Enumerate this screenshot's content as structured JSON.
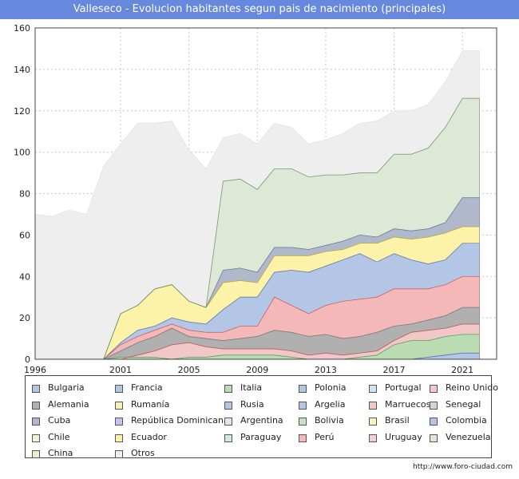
{
  "title": "Valleseco - Evolucion habitantes segun pais de nacimiento (principales)",
  "footer": "http://www.foro-ciudad.com",
  "chart_data": {
    "type": "area",
    "stacked": true,
    "title": "Valleseco - Evolucion habitantes segun pais de nacimiento (principales)",
    "xlabel": "",
    "ylabel": "",
    "xlim": [
      1996,
      2023
    ],
    "ylim": [
      0,
      160
    ],
    "x_ticks": [
      1996,
      2001,
      2005,
      2009,
      2013,
      2017,
      2021
    ],
    "y_ticks": [
      0,
      20,
      40,
      60,
      80,
      100,
      120,
      140,
      160
    ],
    "grid": true,
    "legend_position": "bottom",
    "x": [
      1996,
      1997,
      1998,
      1999,
      2000,
      2001,
      2002,
      2003,
      2004,
      2005,
      2006,
      2007,
      2008,
      2009,
      2010,
      2011,
      2012,
      2013,
      2014,
      2015,
      2016,
      2017,
      2018,
      2019,
      2020,
      2021,
      2022
    ],
    "total": [
      70,
      69,
      72,
      70,
      93,
      104,
      114,
      114,
      115,
      101,
      92,
      107,
      109,
      104,
      114,
      112,
      104,
      106,
      109,
      114,
      115,
      120,
      120,
      123,
      134,
      149,
      149
    ],
    "series": [
      {
        "name": "Bulgaria",
        "color": "#b3c6e6",
        "values": [
          0,
          0,
          0,
          0,
          0,
          0,
          0,
          0,
          0,
          0,
          0,
          0,
          0,
          0,
          0,
          0,
          0,
          0,
          0,
          0,
          0,
          0,
          0,
          0,
          0,
          0,
          0
        ]
      },
      {
        "name": "Francia",
        "color": "#b3c6e6",
        "values": [
          0,
          0,
          0,
          0,
          0,
          0,
          0,
          0,
          0,
          0,
          0,
          0,
          0,
          0,
          0,
          0,
          0,
          0,
          0,
          0,
          0,
          0,
          0,
          0,
          0,
          0,
          0
        ]
      },
      {
        "name": "Italia",
        "color": "#b9dcb3",
        "values": [
          0,
          0,
          0,
          0,
          0,
          0,
          0,
          0,
          0,
          0,
          0,
          0,
          0,
          0,
          0,
          0,
          0,
          0,
          0,
          0,
          0,
          0,
          0,
          0,
          0,
          0,
          0
        ]
      },
      {
        "name": "Polonia",
        "color": "#b3c6e6",
        "values": [
          0,
          0,
          0,
          0,
          0,
          0,
          0,
          0,
          0,
          0,
          0,
          0,
          0,
          0,
          0,
          0,
          0,
          0,
          0,
          0,
          0,
          0,
          0,
          0,
          0,
          0,
          0
        ]
      },
      {
        "name": "Portugal",
        "color": "#cfe6f2",
        "values": [
          0,
          0,
          0,
          0,
          0,
          0,
          0,
          0,
          0,
          0,
          0,
          0,
          0,
          0,
          0,
          0,
          0,
          0,
          0,
          0,
          0,
          0,
          0,
          0,
          0,
          0,
          0
        ]
      },
      {
        "name": "Reino Unido",
        "color": "#f2c7c7",
        "values": [
          0,
          0,
          0,
          0,
          0,
          0,
          0,
          0,
          0,
          0,
          0,
          0,
          0,
          0,
          0,
          0,
          0,
          0,
          0,
          0,
          0,
          0,
          0,
          0,
          0,
          0,
          0
        ]
      },
      {
        "name": "Alemania",
        "color": "#b0b0b0",
        "values": [
          0,
          0,
          0,
          0,
          0,
          0,
          0,
          0,
          0,
          0,
          0,
          0,
          0,
          0,
          0,
          0,
          0,
          0,
          0,
          0,
          0,
          0,
          0,
          0,
          0,
          0,
          0
        ]
      },
      {
        "name": "Rumanía",
        "color": "#f8f0b0",
        "values": [
          0,
          0,
          0,
          0,
          0,
          0,
          0,
          0,
          0,
          0,
          0,
          0,
          0,
          0,
          0,
          0,
          0,
          0,
          0,
          0,
          0,
          0,
          0,
          0,
          0,
          0,
          0
        ]
      },
      {
        "name": "Rusia",
        "color": "#b3c6e6",
        "values": [
          0,
          0,
          0,
          0,
          0,
          0,
          0,
          0,
          0,
          0,
          0,
          0,
          0,
          0,
          0,
          0,
          0,
          0,
          0,
          0,
          0,
          0,
          0,
          0,
          0,
          0,
          0
        ]
      },
      {
        "name": "Argelia",
        "color": "#b3c6e6",
        "values": [
          0,
          0,
          0,
          0,
          0,
          0,
          0,
          0,
          0,
          0,
          0,
          0,
          0,
          0,
          0,
          0,
          0,
          0,
          0,
          0,
          0,
          0,
          0,
          0,
          0,
          0,
          0
        ]
      },
      {
        "name": "Marruecos",
        "color": "#f2c7c7",
        "values": [
          0,
          0,
          0,
          0,
          0,
          0,
          0,
          0,
          0,
          0,
          0,
          0,
          0,
          0,
          0,
          0,
          0,
          0,
          0,
          0,
          0,
          0,
          0,
          0,
          0,
          0,
          0
        ]
      },
      {
        "name": "Senegal",
        "color": "#d4d4d4",
        "values": [
          0,
          0,
          0,
          0,
          0,
          0,
          0,
          0,
          0,
          0,
          0,
          0,
          0,
          0,
          0,
          0,
          0,
          0,
          0,
          0,
          0,
          0,
          0,
          0,
          0,
          0,
          0
        ]
      },
      {
        "name": "Cuba",
        "color": "#b0b8cc",
        "values": [
          0,
          0,
          0,
          0,
          0,
          0,
          0,
          0,
          0,
          0,
          0,
          0,
          0,
          0,
          0,
          0,
          0,
          0,
          0,
          0,
          0,
          0,
          0,
          0,
          0,
          0,
          0
        ]
      },
      {
        "name": "República Dominicana",
        "color": "#c8c0ee",
        "values": [
          0,
          0,
          0,
          0,
          0,
          0,
          0,
          0,
          0,
          0,
          0,
          0,
          0,
          0,
          0,
          0,
          0,
          0,
          0,
          0,
          0,
          0,
          0,
          0,
          0,
          0,
          0
        ]
      },
      {
        "name": "Argentina",
        "color": "#dde8f6",
        "values": [
          0,
          0,
          0,
          0,
          0,
          0,
          0,
          0,
          0,
          0,
          0,
          0,
          0,
          0,
          0,
          0,
          0,
          0,
          0,
          0,
          0,
          0,
          0,
          0,
          0,
          0,
          0
        ]
      },
      {
        "name": "Bolivia",
        "color": "#c4e2c4",
        "values": [
          0,
          0,
          0,
          0,
          0,
          0,
          0,
          0,
          0,
          0,
          0,
          0,
          0,
          0,
          0,
          0,
          0,
          0,
          0,
          0,
          0,
          0,
          0,
          0,
          0,
          0,
          0
        ]
      },
      {
        "name": "Brasil",
        "color": "#faf0c0",
        "values": [
          0,
          0,
          0,
          0,
          0,
          0,
          0,
          0,
          0,
          0,
          0,
          0,
          0,
          0,
          0,
          0,
          0,
          0,
          0,
          0,
          0,
          0,
          0,
          0,
          0,
          0,
          0
        ]
      },
      {
        "name": "Colombia",
        "color": "#b3c6e6",
        "values": [
          0,
          0,
          0,
          0,
          0,
          0,
          0,
          0,
          0,
          0,
          0,
          0,
          0,
          0,
          0,
          0,
          0,
          0,
          0,
          0,
          0,
          0,
          0,
          0,
          0,
          0,
          0
        ]
      },
      {
        "name": "Chile",
        "color": "#f2f2d8",
        "values": [
          0,
          0,
          0,
          0,
          0,
          0,
          0,
          0,
          0,
          0,
          0,
          0,
          0,
          0,
          0,
          0,
          0,
          0,
          0,
          0,
          0,
          0,
          0,
          0,
          0,
          0,
          0
        ]
      },
      {
        "name": "Ecuador",
        "color": "#fdf3a8",
        "values": [
          0,
          0,
          0,
          0,
          0,
          0,
          0,
          0,
          0,
          0,
          0,
          0,
          0,
          0,
          0,
          0,
          0,
          0,
          0,
          0,
          0,
          0,
          0,
          0,
          0,
          0,
          0
        ]
      },
      {
        "name": "Paraguay",
        "color": "#cfe8e8",
        "values": [
          0,
          0,
          0,
          0,
          0,
          0,
          0,
          0,
          0,
          0,
          0,
          0,
          0,
          0,
          0,
          0,
          0,
          0,
          0,
          0,
          0,
          0,
          0,
          0,
          0,
          0,
          0
        ]
      },
      {
        "name": "Perú",
        "color": "#f4b8b8",
        "values": [
          0,
          0,
          0,
          0,
          0,
          0,
          0,
          0,
          0,
          0,
          0,
          0,
          0,
          0,
          0,
          0,
          0,
          0,
          0,
          0,
          0,
          0,
          0,
          0,
          0,
          0,
          0
        ]
      },
      {
        "name": "Uruguay",
        "color": "#f0d0e0",
        "values": [
          0,
          0,
          0,
          0,
          0,
          0,
          0,
          0,
          0,
          0,
          0,
          0,
          0,
          0,
          0,
          0,
          0,
          0,
          0,
          0,
          0,
          0,
          0,
          0,
          0,
          0,
          0
        ]
      },
      {
        "name": "Venezuela",
        "color": "#dde8d6",
        "values": [
          0,
          0,
          0,
          0,
          0,
          0,
          0,
          0,
          0,
          0,
          0,
          0,
          0,
          0,
          0,
          0,
          0,
          0,
          0,
          0,
          0,
          0,
          0,
          0,
          0,
          0,
          0
        ]
      },
      {
        "name": "China",
        "color": "#e8f0d0",
        "values": [
          0,
          0,
          0,
          0,
          0,
          0,
          0,
          0,
          0,
          0,
          0,
          0,
          0,
          0,
          0,
          0,
          0,
          0,
          0,
          0,
          0,
          0,
          0,
          0,
          0,
          0,
          0
        ]
      },
      {
        "name": "Otros",
        "color": "#eeeeee",
        "values": [
          0,
          0,
          0,
          0,
          0,
          0,
          0,
          0,
          0,
          0,
          0,
          0,
          0,
          0,
          0,
          0,
          0,
          0,
          0,
          0,
          0,
          0,
          0,
          0,
          0,
          0,
          0
        ]
      }
    ],
    "cumulative_layers": [
      {
        "name": "Bulgaria",
        "color": "#b3c6e6",
        "top": [
          0,
          0,
          0,
          0,
          0,
          0,
          0,
          0,
          0,
          0,
          0,
          0,
          0,
          0,
          0,
          0,
          0,
          0,
          0,
          0,
          0,
          0,
          0,
          1,
          2,
          3,
          3
        ]
      },
      {
        "name": "Italia",
        "color": "#b9dcb3",
        "top": [
          0,
          0,
          0,
          0,
          0,
          1,
          1,
          1,
          0,
          1,
          1,
          2,
          2,
          2,
          2,
          1,
          0,
          0,
          0,
          1,
          2,
          7,
          9,
          9,
          11,
          12,
          12
        ]
      },
      {
        "name": "Marruecos",
        "color": "#f2c7c7",
        "top": [
          0,
          0,
          0,
          0,
          0,
          0,
          2,
          4,
          7,
          8,
          6,
          5,
          5,
          5,
          5,
          4,
          2,
          3,
          2,
          3,
          4,
          9,
          13,
          14,
          15,
          17,
          17
        ]
      },
      {
        "name": "Alemania",
        "color": "#b0b0b0",
        "top": [
          0,
          0,
          0,
          0,
          0,
          4,
          8,
          11,
          15,
          11,
          10,
          9,
          10,
          11,
          14,
          13,
          11,
          12,
          10,
          11,
          13,
          16,
          17,
          19,
          21,
          25,
          25
        ]
      },
      {
        "name": "Perú",
        "color": "#f4b8b8",
        "top": [
          0,
          0,
          0,
          0,
          0,
          7,
          11,
          14,
          17,
          14,
          13,
          13,
          16,
          16,
          30,
          26,
          22,
          26,
          28,
          29,
          30,
          34,
          34,
          34,
          36,
          40,
          40
        ]
      },
      {
        "name": "Colombia",
        "color": "#b3c6e6",
        "top": [
          0,
          0,
          0,
          0,
          0,
          8,
          14,
          16,
          20,
          18,
          17,
          24,
          30,
          30,
          42,
          43,
          42,
          45,
          48,
          51,
          47,
          51,
          48,
          46,
          48,
          56,
          56
        ]
      },
      {
        "name": "Ecuador",
        "color": "#fdf3a8",
        "top": [
          0,
          0,
          0,
          0,
          0,
          22,
          26,
          34,
          36,
          28,
          25,
          37,
          38,
          37,
          50,
          50,
          50,
          52,
          53,
          56,
          56,
          59,
          58,
          59,
          61,
          64,
          64
        ]
      },
      {
        "name": "Cuba",
        "color": "#b0b8cc",
        "top": [
          0,
          0,
          0,
          0,
          0,
          22,
          26,
          34,
          36,
          28,
          25,
          43,
          44,
          42,
          54,
          54,
          53,
          55,
          57,
          60,
          59,
          63,
          62,
          63,
          66,
          78,
          78
        ]
      },
      {
        "name": "Venezuela",
        "color": "#dde8d6",
        "top": [
          0,
          0,
          0,
          0,
          0,
          22,
          26,
          34,
          36,
          28,
          25,
          86,
          87,
          82,
          92,
          92,
          88,
          89,
          89,
          90,
          90,
          99,
          99,
          102,
          112,
          126,
          126
        ]
      },
      {
        "name": "Otros",
        "color": "#eeeeee",
        "top": [
          70,
          69,
          72,
          70,
          93,
          104,
          114,
          114,
          115,
          101,
          92,
          107,
          109,
          104,
          114,
          112,
          104,
          106,
          109,
          114,
          115,
          120,
          120,
          123,
          134,
          149,
          149
        ]
      }
    ]
  },
  "legend": [
    {
      "label": "Bulgaria",
      "color": "#b3c6e6"
    },
    {
      "label": "Francia",
      "color": "#b3c6e6"
    },
    {
      "label": "Italia",
      "color": "#b9dcb3"
    },
    {
      "label": "Polonia",
      "color": "#b3c6e6"
    },
    {
      "label": "Portugal",
      "color": "#cfe6f2"
    },
    {
      "label": "Reino Unido",
      "color": "#f2c7c7"
    },
    {
      "label": "Alemania",
      "color": "#b0b0b0"
    },
    {
      "label": "Rumanía",
      "color": "#f8f0b0"
    },
    {
      "label": "Rusia",
      "color": "#b3c6e6"
    },
    {
      "label": "Argelia",
      "color": "#b3c6e6"
    },
    {
      "label": "Marruecos",
      "color": "#f2c7c7"
    },
    {
      "label": "Senegal",
      "color": "#d4d4d4"
    },
    {
      "label": "Cuba",
      "color": "#b0b8cc"
    },
    {
      "label": "República Dominicana",
      "color": "#c8c0ee"
    },
    {
      "label": "Argentina",
      "color": "#dde8f6"
    },
    {
      "label": "Bolivia",
      "color": "#c4e2c4"
    },
    {
      "label": "Brasil",
      "color": "#faf0c0"
    },
    {
      "label": "Colombia",
      "color": "#b3c6e6"
    },
    {
      "label": "Chile",
      "color": "#f2f2d8"
    },
    {
      "label": "Ecuador",
      "color": "#fdf3a8"
    },
    {
      "label": "Paraguay",
      "color": "#cfe8e8"
    },
    {
      "label": "Perú",
      "color": "#f4b8b8"
    },
    {
      "label": "Uruguay",
      "color": "#f0d0e0"
    },
    {
      "label": "Venezuela",
      "color": "#dde8d6"
    },
    {
      "label": "China",
      "color": "#e8f0d0"
    },
    {
      "label": "Otros",
      "color": "#eeeeee"
    }
  ]
}
